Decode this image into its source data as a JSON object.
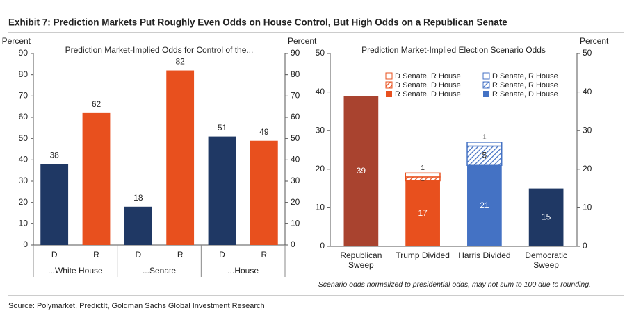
{
  "title": "Exhibit 7: Prediction Markets Put Roughly Even Odds on House Control, But High Odds on a Republican Senate",
  "source": "Source: Polymarket, PredictIt, Goldman Sachs Global Investment Research",
  "chart_data": [
    {
      "type": "bar",
      "title": "Prediction Market-Implied  Odds for Control of the...",
      "ylabel": "Percent",
      "y2label": "Percent",
      "categories": [
        "D",
        "R",
        "D",
        "R",
        "D",
        "R"
      ],
      "group_labels": [
        "...White House",
        "...Senate",
        "...House"
      ],
      "values": [
        38,
        62,
        18,
        82,
        51,
        49
      ],
      "colors": [
        "#1f3864",
        "#e8501e",
        "#1f3864",
        "#e8501e",
        "#1f3864",
        "#e8501e"
      ],
      "ylim": [
        0,
        90
      ],
      "yticks": [
        0,
        10,
        20,
        30,
        40,
        50,
        60,
        70,
        80,
        90
      ],
      "y2lim": [
        0,
        90
      ],
      "y2ticks": [
        0,
        10,
        20,
        30,
        40,
        50,
        60,
        70,
        80,
        90
      ]
    },
    {
      "type": "stacked_bar",
      "title": "Prediction Market-Implied  Election Scenario Odds",
      "y2label": "Percent",
      "note": "Scenario odds normalized to presidential odds, may not sum to 100 due to rounding.",
      "categories": [
        "Republican Sweep",
        "Trump Divided",
        "Harris Divided",
        "Democratic Sweep"
      ],
      "series": [
        {
          "name": "R Senate, D House",
          "color": "#e8501e",
          "style": "solid",
          "values": [
            null,
            17,
            null,
            null
          ]
        },
        {
          "name": "D Senate, D House",
          "color": "#e8501e",
          "style": "hatch",
          "values": [
            null,
            1,
            null,
            null
          ]
        },
        {
          "name": "D Senate, R House",
          "color": "#e8501e",
          "style": "outline",
          "values": [
            null,
            1,
            null,
            null
          ]
        },
        {
          "name": "R Senate, D House",
          "color": "#4472c4",
          "style": "solid",
          "values": [
            null,
            null,
            21,
            null
          ]
        },
        {
          "name": "R Senate, R House",
          "color": "#4472c4",
          "style": "hatch",
          "values": [
            null,
            null,
            5,
            null
          ]
        },
        {
          "name": "D Senate, R House",
          "color": "#4472c4",
          "style": "outline",
          "values": [
            null,
            null,
            1,
            null
          ]
        },
        {
          "color": "#a9432f",
          "style": "solid",
          "values": [
            39,
            null,
            null,
            null
          ]
        },
        {
          "color": "#1f3864",
          "style": "solid",
          "values": [
            null,
            null,
            null,
            15
          ]
        }
      ],
      "ylim": [
        0,
        50
      ],
      "yticks": [
        0,
        10,
        20,
        30,
        40,
        50
      ],
      "y2lim": [
        0,
        50
      ],
      "y2ticks": [
        0,
        10,
        20,
        30,
        40,
        50
      ]
    }
  ]
}
